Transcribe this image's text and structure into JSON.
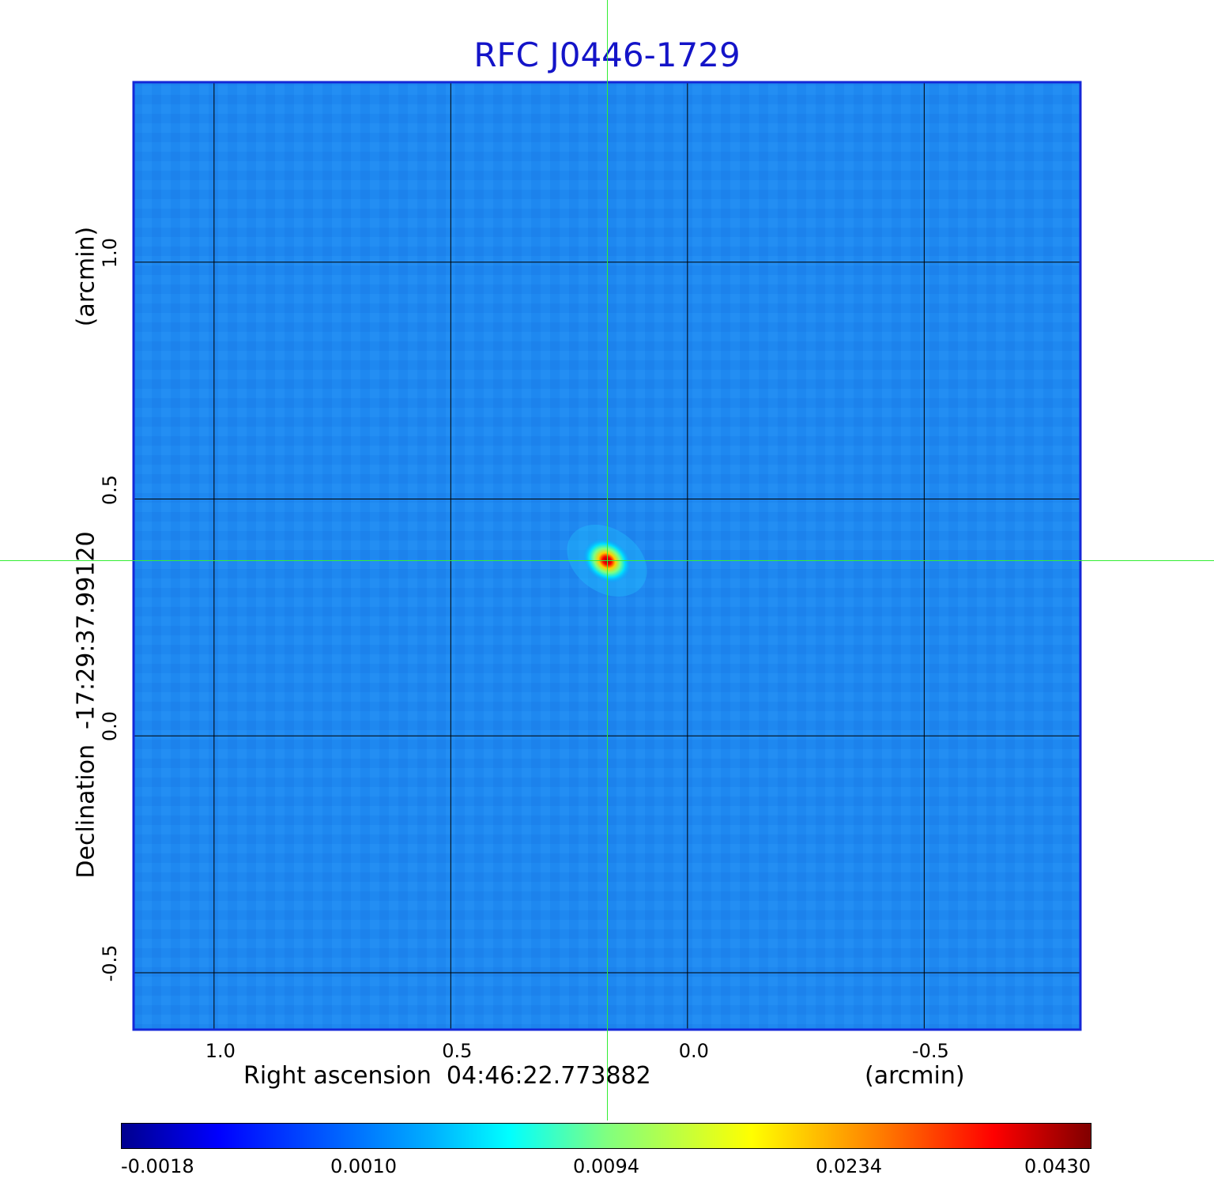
{
  "chart_data": {
    "type": "heatmap",
    "title": "RFC J0446-1729",
    "xlabel": "Right ascension  04:46:22.773882",
    "x_unit": "(arcmin)",
    "ylabel": "Declination  -17:29:37.99120",
    "y_unit": "(arcmin)",
    "xlim": [
      1.17,
      -0.83
    ],
    "ylim": [
      -0.62,
      1.38
    ],
    "x_ticks": [
      "1.0",
      "0.5",
      "0.0",
      "-0.5"
    ],
    "y_ticks": [
      "1.0",
      "0.5",
      "0.0",
      "-0.5"
    ],
    "grid": true,
    "crosshair": {
      "x": 0.17,
      "y": 0.37
    },
    "colormap": "jet",
    "colorbar_ticks": [
      "-0.0018",
      "0.0010",
      "0.0094",
      "0.0234",
      "0.0430"
    ],
    "value_range": [
      -0.0018,
      0.043
    ],
    "background_level": 0.0006,
    "source": {
      "x": 0.17,
      "y": 0.37,
      "peak": 0.043
    }
  }
}
